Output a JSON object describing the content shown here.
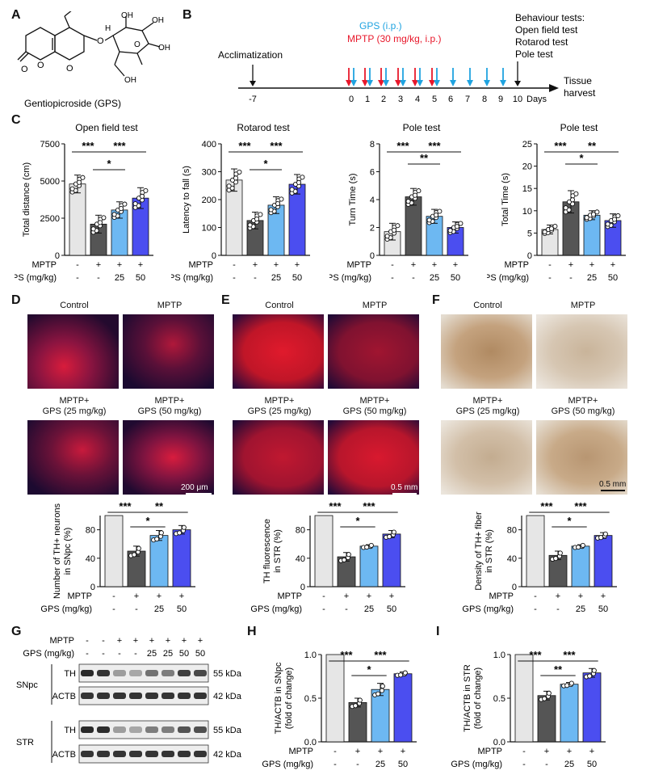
{
  "letters": {
    "A": "A",
    "B": "B",
    "C": "C",
    "D": "D",
    "E": "E",
    "F": "F",
    "G": "G",
    "H": "H",
    "I": "I"
  },
  "panelA": {
    "caption": "Gentiopicroside (GPS)",
    "atoms": [
      "O",
      "O",
      "O",
      "H",
      "OH",
      "OH",
      "OH",
      "O",
      "OH",
      "O"
    ]
  },
  "panelB": {
    "acclimatization": "Acclimatization",
    "gps_label": "GPS (i.p.)",
    "mptp_label": "MPTP (30 mg/kg, i.p.)",
    "behaviour_title": "Behaviour tests:",
    "behaviour_tests": [
      "Open field test",
      "Rotarod test",
      "Pole test"
    ],
    "tissue": [
      "Tissue",
      "harvest"
    ],
    "days_label": "Days",
    "ticks": [
      "-7",
      "0",
      "1",
      "2",
      "3",
      "4",
      "5",
      "6",
      "7",
      "8",
      "9",
      "10"
    ],
    "colors": {
      "gps": "#1fa3e0",
      "mptp": "#e8182b"
    }
  },
  "groups_row": {
    "mptp_label": "MPTP",
    "gps_label": "GPS (mg/kg)",
    "mptp": [
      "-",
      "+",
      "+",
      "+"
    ],
    "gps": [
      "-",
      "-",
      "25",
      "50"
    ]
  },
  "bar_colors": [
    "#e6e6e6",
    "#555555",
    "#6db8f2",
    "#4b4ef0"
  ],
  "chart_data": [
    {
      "type": "bar",
      "panel": "C",
      "title": "Open field test",
      "ylabel": "Total distance (cm)",
      "ylim": [
        0,
        7500
      ],
      "yticks": [
        "0",
        "2500",
        "5000",
        "7500"
      ],
      "values": [
        4800,
        2100,
        3050,
        3850
      ],
      "err": [
        600,
        600,
        550,
        700
      ],
      "sig": [
        {
          "from": 0,
          "to": 1,
          "label": "***"
        },
        {
          "from": 1,
          "to": 3,
          "label": "***"
        },
        {
          "from": 1,
          "to": 2,
          "label": "*"
        }
      ]
    },
    {
      "type": "bar",
      "panel": "C",
      "title": "Rotarod test",
      "ylabel": "Latency to fall (s)",
      "ylim": [
        0,
        400
      ],
      "yticks": [
        "0",
        "100",
        "200",
        "300",
        "400"
      ],
      "values": [
        270,
        125,
        180,
        255
      ],
      "err": [
        40,
        30,
        30,
        35
      ],
      "sig": [
        {
          "from": 0,
          "to": 1,
          "label": "***"
        },
        {
          "from": 1,
          "to": 3,
          "label": "***"
        },
        {
          "from": 1,
          "to": 2,
          "label": "*"
        }
      ]
    },
    {
      "type": "bar",
      "panel": "C",
      "title": "Pole test",
      "ylabel": "Turn Time (s)",
      "ylim": [
        0,
        8
      ],
      "yticks": [
        "0",
        "2",
        "4",
        "6",
        "8"
      ],
      "values": [
        1.7,
        4.2,
        2.8,
        2.0
      ],
      "err": [
        0.6,
        0.6,
        0.5,
        0.4
      ],
      "sig": [
        {
          "from": 0,
          "to": 1,
          "label": "***"
        },
        {
          "from": 1,
          "to": 3,
          "label": "***"
        },
        {
          "from": 1,
          "to": 2,
          "label": "**"
        }
      ]
    },
    {
      "type": "bar",
      "panel": "C",
      "title": "Pole test",
      "ylabel": "Total Time (s)",
      "ylim": [
        0,
        25
      ],
      "yticks": [
        "0",
        "5",
        "10",
        "15",
        "20",
        "25"
      ],
      "values": [
        5.8,
        12.0,
        9.0,
        7.8
      ],
      "err": [
        1.0,
        2.5,
        1.0,
        1.5
      ],
      "sig": [
        {
          "from": 0,
          "to": 1,
          "label": "***"
        },
        {
          "from": 1,
          "to": 3,
          "label": "**"
        },
        {
          "from": 1,
          "to": 2,
          "label": "*"
        }
      ]
    },
    {
      "type": "bar",
      "panel": "D",
      "ylabel": "Number of TH+ neurons in SNpc (%)",
      "ylim": [
        0,
        100
      ],
      "yticks": [
        "0",
        "40",
        "80"
      ],
      "values": [
        100,
        50,
        72,
        80
      ],
      "err": [
        0,
        7,
        7,
        6
      ],
      "sig": [
        {
          "from": 0,
          "to": 1,
          "label": "***"
        },
        {
          "from": 1,
          "to": 3,
          "label": "**"
        },
        {
          "from": 1,
          "to": 2,
          "label": "*"
        }
      ]
    },
    {
      "type": "bar",
      "panel": "E",
      "ylabel": "TH fluorescence in STR (%)",
      "ylim": [
        0,
        100
      ],
      "yticks": [
        "0",
        "40",
        "80"
      ],
      "values": [
        100,
        42,
        57,
        74
      ],
      "err": [
        0,
        6,
        2,
        5
      ],
      "sig": [
        {
          "from": 0,
          "to": 1,
          "label": "***"
        },
        {
          "from": 1,
          "to": 3,
          "label": "***"
        },
        {
          "from": 1,
          "to": 2,
          "label": "*"
        }
      ]
    },
    {
      "type": "bar",
      "panel": "F",
      "ylabel": "Density of TH+ fiber in STR (%)",
      "ylim": [
        0,
        100
      ],
      "yticks": [
        "0",
        "40",
        "80"
      ],
      "values": [
        100,
        44,
        57,
        72
      ],
      "err": [
        0,
        6,
        2,
        4
      ],
      "sig": [
        {
          "from": 0,
          "to": 1,
          "label": "***"
        },
        {
          "from": 1,
          "to": 3,
          "label": "***"
        },
        {
          "from": 1,
          "to": 2,
          "label": "*"
        }
      ]
    },
    {
      "type": "bar",
      "panel": "H",
      "ylabel": "TH/ACTB in SNpc (fold of change)",
      "ylim": [
        0,
        1.0
      ],
      "yticks": [
        "0.0",
        "0.5",
        "1.0"
      ],
      "values": [
        1.0,
        0.45,
        0.6,
        0.78
      ],
      "err": [
        0,
        0.05,
        0.07,
        0.02
      ],
      "sig": [
        {
          "from": 0,
          "to": 1,
          "label": "***"
        },
        {
          "from": 1,
          "to": 3,
          "label": "***"
        },
        {
          "from": 1,
          "to": 2,
          "label": "*"
        }
      ]
    },
    {
      "type": "bar",
      "panel": "I",
      "ylabel": "TH/ACTB in STR (fold of change)",
      "ylim": [
        0,
        1.0
      ],
      "yticks": [
        "0.0",
        "0.5",
        "1.0"
      ],
      "values": [
        1.0,
        0.53,
        0.66,
        0.79
      ],
      "err": [
        0,
        0.05,
        0.02,
        0.05
      ],
      "sig": [
        {
          "from": 0,
          "to": 1,
          "label": "***"
        },
        {
          "from": 1,
          "to": 3,
          "label": "***"
        },
        {
          "from": 1,
          "to": 2,
          "label": "**"
        }
      ]
    }
  ],
  "micrographs": {
    "D": {
      "labels": [
        "Control",
        "MPTP",
        "MPTP+\nGPS (25 mg/kg)",
        "MPTP+\nGPS (50 mg/kg)"
      ],
      "scale": "200 μm"
    },
    "E": {
      "labels": [
        "Control",
        "MPTP",
        "MPTP+\nGPS (25 mg/kg)",
        "MPTP+\nGPS (50 mg/kg)"
      ],
      "scale": "0.5 mm"
    },
    "F": {
      "labels": [
        "Control",
        "MPTP",
        "MPTP+\nGPS (25 mg/kg)",
        "MPTP+\nGPS (50 mg/kg)"
      ],
      "scale": "0.5 mm"
    }
  },
  "blot": {
    "mptp_label": "MPTP",
    "gps_label": "GPS (mg/kg)",
    "mptp": [
      "-",
      "-",
      "+",
      "+",
      "+",
      "+",
      "+",
      "+"
    ],
    "gps": [
      "-",
      "-",
      "-",
      "-",
      "25",
      "25",
      "50",
      "50"
    ],
    "regions": [
      "SNpc",
      "STR"
    ],
    "proteins": [
      "TH",
      "ACTB"
    ],
    "sizes": [
      "55 kDa",
      "42 kDa"
    ],
    "intensity": {
      "SNpc_TH": [
        0.9,
        0.85,
        0.35,
        0.3,
        0.55,
        0.5,
        0.8,
        0.75
      ],
      "SNpc_ACTB": [
        0.85,
        0.85,
        0.85,
        0.85,
        0.85,
        0.85,
        0.85,
        0.85
      ],
      "STR_TH": [
        0.9,
        0.88,
        0.35,
        0.3,
        0.5,
        0.5,
        0.7,
        0.72
      ],
      "STR_ACTB": [
        0.85,
        0.85,
        0.85,
        0.85,
        0.85,
        0.85,
        0.85,
        0.85
      ]
    }
  }
}
